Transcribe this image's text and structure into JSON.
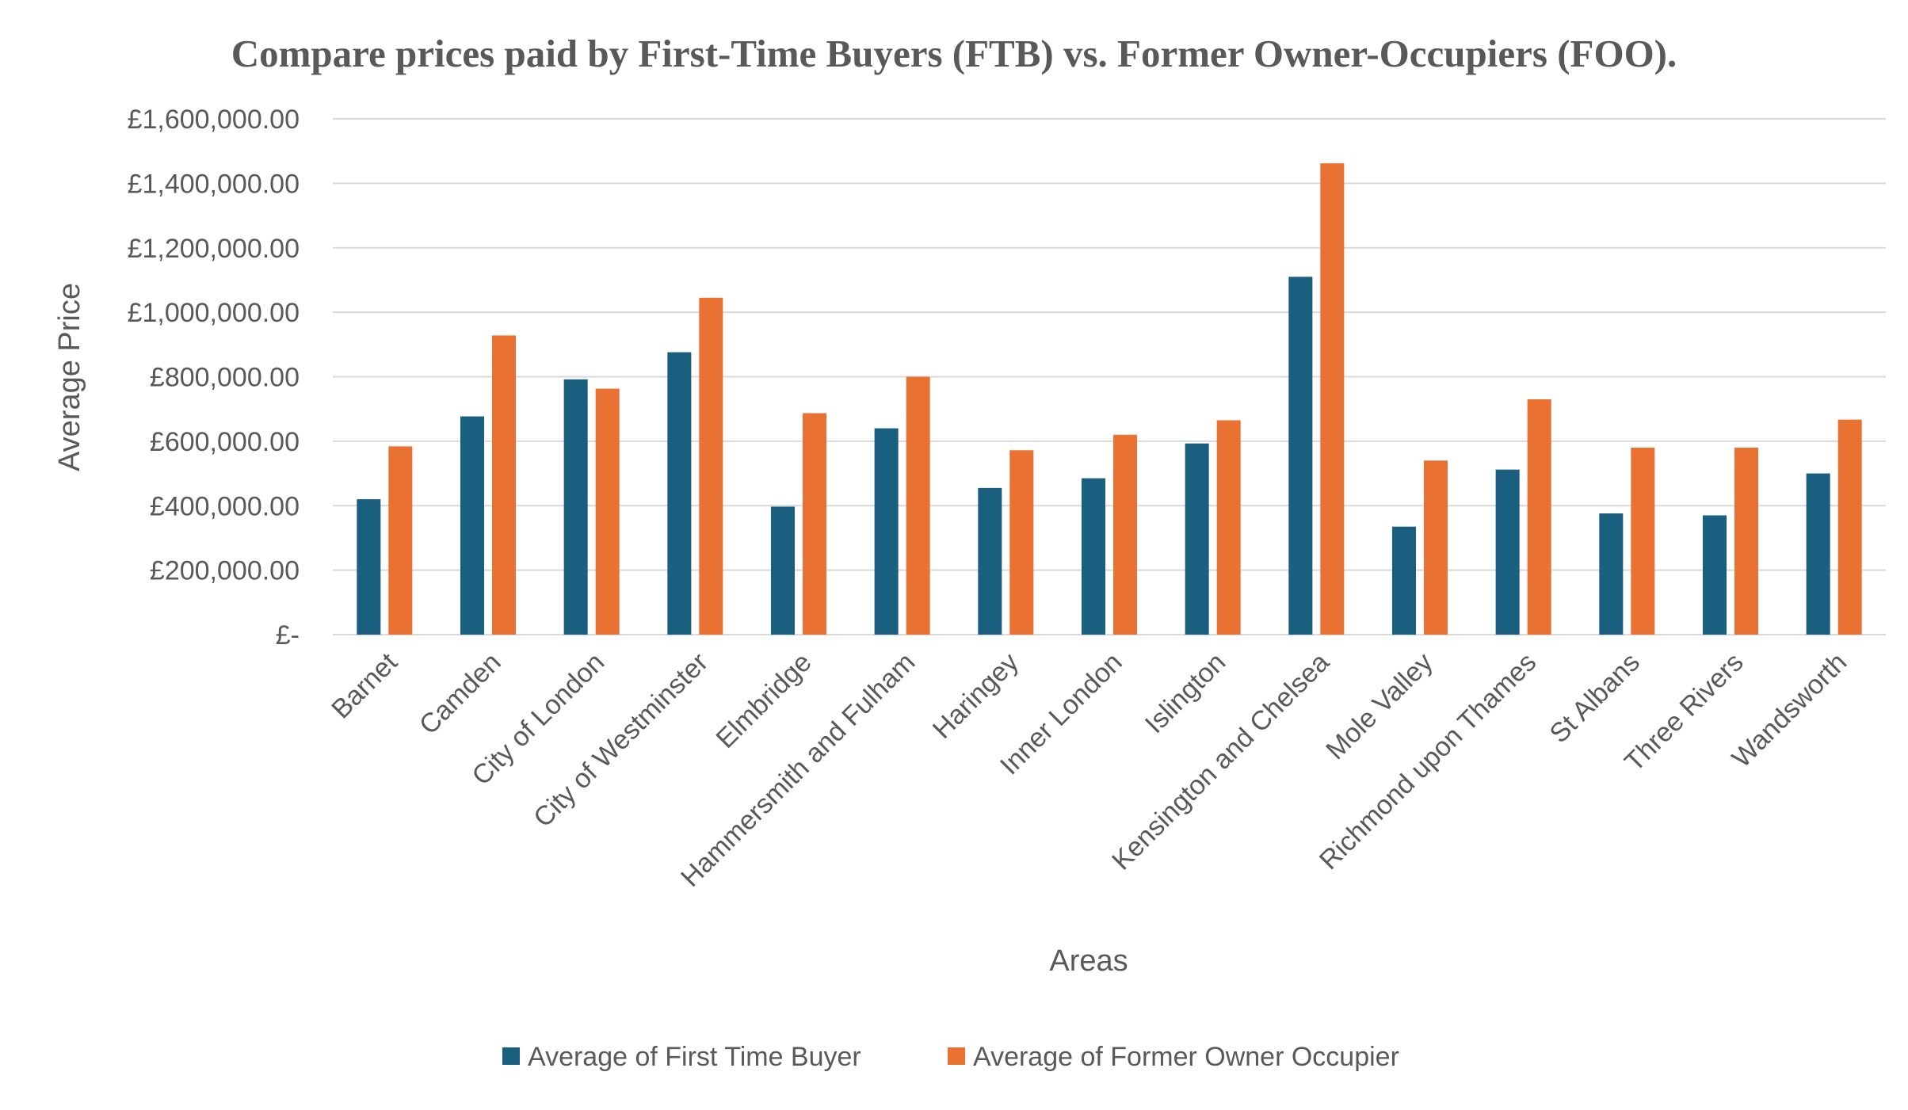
{
  "chart_data": {
    "type": "bar",
    "title": "Compare prices paid by First-Time Buyers (FTB) vs. Former Owner-Occupiers (FOO).",
    "xlabel": "Areas",
    "ylabel": "Average Price",
    "ylim": [
      0,
      1600000
    ],
    "ytick_step": 200000,
    "ytick_labels": [
      "£-",
      "£200,000.00",
      "£400,000.00",
      "£600,000.00",
      "£800,000.00",
      "£1,000,000.00",
      "£1,200,000.00",
      "£1,400,000.00",
      "£1,600,000.00"
    ],
    "grid": true,
    "legend_position": "bottom",
    "categories": [
      "Barnet",
      "Camden",
      "City of London",
      "City of Westminster",
      "Elmbridge",
      "Hammersmith and Fulham",
      "Haringey",
      "Inner London",
      "Islington",
      "Kensington and Chelsea",
      "Mole Valley",
      "Richmond upon Thames",
      "St Albans",
      "Three Rivers",
      "Wandsworth"
    ],
    "series": [
      {
        "name": "Average of First Time Buyer",
        "color": "#1a5e80",
        "values": [
          420000,
          677000,
          792000,
          876000,
          397000,
          640000,
          455000,
          485000,
          593000,
          1110000,
          335000,
          512000,
          376000,
          370000,
          500000
        ]
      },
      {
        "name": "Average of Former Owner Occupier",
        "color": "#e97132",
        "values": [
          584000,
          928000,
          763000,
          1045000,
          687000,
          800000,
          572000,
          620000,
          665000,
          1462000,
          540000,
          730000,
          580000,
          580000,
          667000
        ]
      }
    ]
  },
  "colors": {
    "gridline": "#d9d9d9",
    "axis_text": "#595959",
    "background": "#ffffff"
  }
}
